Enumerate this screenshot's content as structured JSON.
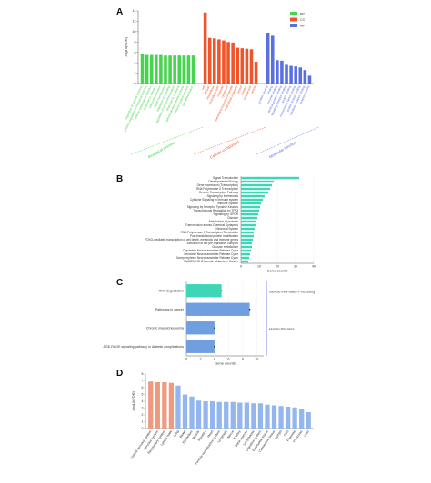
{
  "chart_data": [
    {
      "type": "grouped_bar",
      "panel": "A",
      "y_label": "-log10(FDR)",
      "ylim": [
        0,
        14
      ],
      "yticks": [
        0,
        2,
        4,
        6,
        8,
        10,
        12,
        14
      ],
      "groups": [
        {
          "name": "BP",
          "label": "Biological process",
          "color": "#46d34e",
          "categories": [
            "regulation of cellular process",
            "positive regulation of biological process",
            "cellular response to stimulus",
            "response to stimulus",
            "cell communication",
            "signal transduction",
            "regulation of signaling",
            "regulation of cell communication",
            "response to chemical",
            "cellular developmental process",
            "immune system process",
            "cell differentiation"
          ],
          "values": [
            5.6,
            5.5,
            5.5,
            5.5,
            5.5,
            5.4,
            5.4,
            5.4,
            5.4,
            5.4,
            5.4,
            5.4
          ]
        },
        {
          "name": "CC",
          "label": "Cellular component",
          "color": "#f0542a",
          "categories": [
            "cell",
            "cell part",
            "intracellular",
            "intracellular part",
            "organelle",
            "cytoplasm",
            "membrane-bounded organelle",
            "intracellular organelle",
            "cytosol",
            "nucleus",
            "nuclear part",
            "vesicle"
          ],
          "values": [
            13.7,
            8.8,
            8.7,
            8.5,
            8.3,
            8.0,
            7.9,
            6.9,
            6.8,
            6.7,
            6.6,
            4.2
          ]
        },
        {
          "name": "MF",
          "label": "Molecular function",
          "color": "#5a6fe0",
          "categories": [
            "protein binding",
            "binding",
            "enzyme binding",
            "identical protein binding",
            "signaling receptor binding",
            "kinase binding",
            "transcription factor binding",
            "protein kinase binding",
            "cytokine receptor binding",
            "receptor activity"
          ],
          "values": [
            9.8,
            9.2,
            4.5,
            4.4,
            3.6,
            3.4,
            3.3,
            3.1,
            2.6,
            1.5
          ]
        }
      ]
    },
    {
      "type": "hbar",
      "panel": "B",
      "x_label": "Gene counts",
      "color": "#3fd6b8",
      "xlim": [
        0,
        40
      ],
      "xticks": [
        0,
        10,
        20,
        30,
        40
      ],
      "categories": [
        "Signal Transduction",
        "Developmental Biology",
        "Gene expression (Transcription)",
        "RNA Polymerase II Transcription",
        "Generic Transcription Pathway",
        "Signaling by Interleukins",
        "Cytokine Signaling in Immune system",
        "Immune System",
        "Signaling by Receptor Tyrosine Kinases",
        "Transcriptional Regulation by TP53",
        "Signaling by GPCR",
        "Disease",
        "Metabolism of proteins",
        "Transmission across Chemical Synapses",
        "Neuronal System",
        "RNA Polymerase II Transcription Termination",
        "Post-translational protein modification",
        "FOXO-mediated transcription of cell death, metabolic and immune genes",
        "Activation of the pre-replicative complex",
        "Glucose metabolism",
        "Dopamine Neurotransmitter Release Cycle",
        "Serotonin Neurotransmitter Release Cycle",
        "Norepinephrine Neurotransmitter Release Cycle",
        "SMAD2/3 MH2 Domain Mutants in Cancer"
      ],
      "values": [
        32,
        18,
        17,
        16,
        15,
        13,
        12,
        11,
        10.5,
        10,
        9.5,
        9,
        8.5,
        8,
        7.5,
        7,
        7,
        6.5,
        6,
        6,
        5.5,
        5,
        4.5,
        4
      ]
    },
    {
      "type": "hbar",
      "panel": "C",
      "x_label": "Gene counts",
      "xlim": [
        0,
        11
      ],
      "xticks": [
        0,
        2,
        4,
        6,
        8,
        10
      ],
      "categories": [
        "RNA degradation",
        "Pathways in cancer",
        "Chronic myeloid leukemia",
        "AGE-RAGE signaling pathway in diabetic complications"
      ],
      "values": [
        5,
        9,
        4,
        4
      ],
      "colors": [
        "#3fd6b8",
        "#6f9fe0",
        "#6f9fe0",
        "#6f9fe0"
      ],
      "side_groups": [
        {
          "label": "Genetic Information Processing",
          "size": 2
        },
        {
          "label": "Human Diseases",
          "size": 2
        }
      ]
    },
    {
      "type": "bar",
      "panel": "D",
      "y_label": "-log10(FDR)",
      "ylim": [
        0,
        8
      ],
      "yticks": [
        0,
        1,
        2,
        3,
        4,
        5,
        6,
        7,
        8
      ],
      "categories": [
        "Central nervous system",
        "Nervous system",
        "Respiratory system",
        "Lymph node",
        "Lung",
        "Blood",
        "Epithelium",
        "Muscle",
        "Intestine",
        "Heart",
        "Female reproductive system",
        "Lymphoid",
        "Nerve",
        "Kidney",
        "Bone marrow",
        "Lymphocyte",
        "Digestive system",
        "Embryonic tissue",
        "Connective tissue",
        "Lymph",
        "Skin",
        "Placenta",
        "Pancreas",
        "Liver"
      ],
      "values": [
        6.9,
        6.8,
        6.8,
        6.7,
        6.3,
        5.0,
        4.7,
        4.1,
        4.0,
        4.0,
        3.9,
        3.9,
        3.9,
        3.8,
        3.8,
        3.7,
        3.7,
        3.5,
        3.4,
        3.3,
        3.2,
        3.1,
        2.9,
        2.4
      ],
      "colors": [
        "#ee9a80",
        "#ee9a80",
        "#ee9a80",
        "#ee9a80",
        "#94b6ee",
        "#94b6ee",
        "#94b6ee",
        "#94b6ee",
        "#94b6ee",
        "#94b6ee",
        "#94b6ee",
        "#94b6ee",
        "#94b6ee",
        "#94b6ee",
        "#94b6ee",
        "#94b6ee",
        "#94b6ee",
        "#94b6ee",
        "#94b6ee",
        "#94b6ee",
        "#94b6ee",
        "#94b6ee",
        "#94b6ee",
        "#94b6ee"
      ]
    }
  ]
}
